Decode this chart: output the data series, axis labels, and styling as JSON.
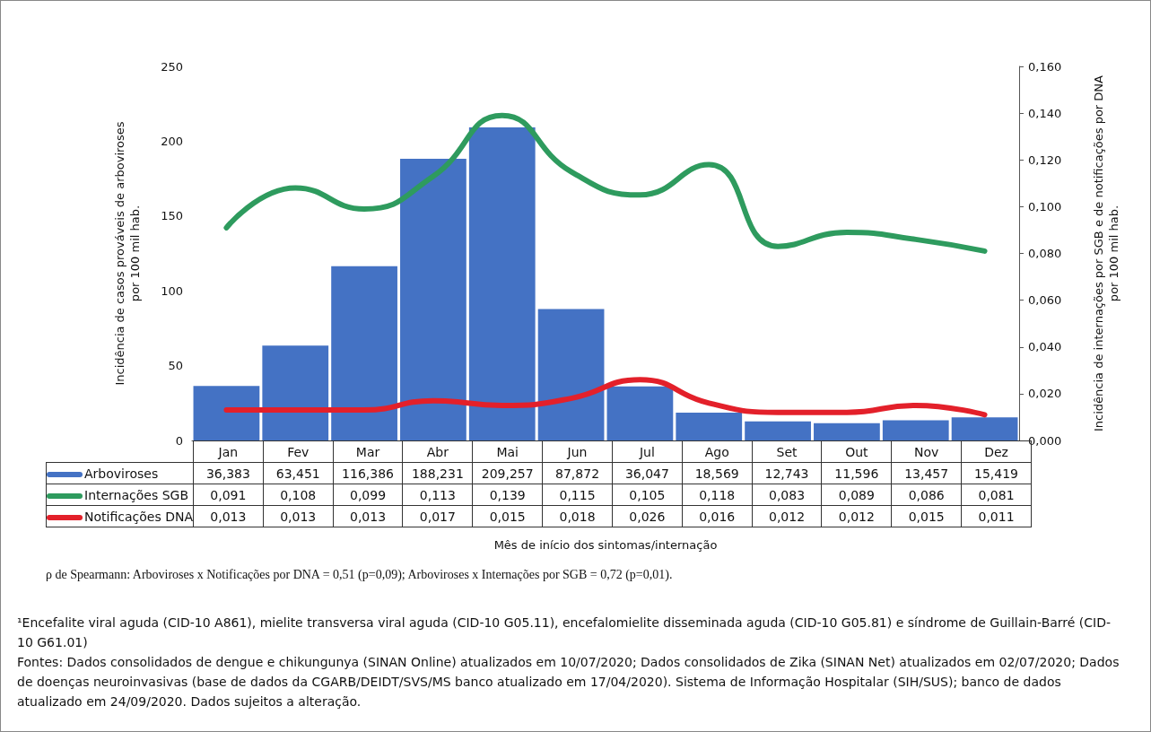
{
  "chart_data": {
    "type": "bar",
    "ylabel": "Incidência de casos prováveis de arboviroses\npor 100 mil hab.",
    "y2label": "Incidência de internações por SGB e de notificações por DNA\npor 100 mil hab.",
    "categories": [
      "Jan",
      "Fev",
      "Mar",
      "Abr",
      "Mai",
      "Jun",
      "Jul",
      "Ago",
      "Set",
      "Out",
      "Nov",
      "Dez"
    ],
    "series": [
      {
        "name": "Arboviroses",
        "color": "#4472c4",
        "values": [
          36.383,
          63.451,
          116.386,
          188.231,
          209.257,
          87.872,
          36.047,
          18.569,
          12.743,
          11.596,
          13.457,
          15.419
        ],
        "value_labels": [
          "36,383",
          "63,451",
          "116,386",
          "188,231",
          "209,257",
          "87,872",
          "36,047",
          "18,569",
          "12,743",
          "11,596",
          "13,457",
          "15,419"
        ]
      },
      {
        "name": "Internações SGB",
        "type": "line",
        "axis": "y2",
        "color": "#2e9b5e",
        "values": [
          0.091,
          0.108,
          0.099,
          0.113,
          0.139,
          0.115,
          0.105,
          0.118,
          0.083,
          0.089,
          0.086,
          0.081
        ],
        "value_labels": [
          "0,091",
          "0,108",
          "0,099",
          "0,113",
          "0,139",
          "0,115",
          "0,105",
          "0,118",
          "0,083",
          "0,089",
          "0,086",
          "0,081"
        ]
      },
      {
        "name": "Notificações DNA",
        "type": "line",
        "axis": "y2",
        "color": "#e3202a",
        "values": [
          0.013,
          0.013,
          0.013,
          0.017,
          0.015,
          0.018,
          0.026,
          0.016,
          0.012,
          0.012,
          0.015,
          0.011
        ],
        "value_labels": [
          "0,013",
          "0,013",
          "0,013",
          "0,017",
          "0,015",
          "0,018",
          "0,026",
          "0,016",
          "0,012",
          "0,012",
          "0,015",
          "0,011"
        ]
      }
    ],
    "ylim": [
      0,
      250
    ],
    "yticks": [
      0,
      50,
      100,
      150,
      200,
      250
    ],
    "y2lim": [
      0,
      0.16
    ],
    "y2ticks": [
      {
        "value": 0,
        "label": "0,000"
      },
      {
        "value": 0.02,
        "label": "0,020"
      },
      {
        "value": 0.04,
        "label": "0,040"
      },
      {
        "value": 0.06,
        "label": "0,060"
      },
      {
        "value": 0.08,
        "label": "0,080"
      },
      {
        "value": 0.1,
        "label": "0,100"
      },
      {
        "value": 0.12,
        "label": "0,120"
      },
      {
        "value": 0.14,
        "label": "0,140"
      },
      {
        "value": 0.16,
        "label": "0,160"
      }
    ],
    "grid": false,
    "legend": "bottom left",
    "marker": "none",
    "line_style": "solid",
    "annotations": [
      "Mês de início dos sintomas/internação",
      "ρ de Spearmann: Arboviroses x Notificações por DNA = 0,51 (p=0,09); Arboviroses x Internações por SGB = 0,72 (p=0,01).",
      "¹Encefalite viral aguda (CID-10 A861), mielite transversa viral aguda (CID-10 G05.11), encefalomielite disseminada aguda (CID-10 G05.81) e síndrome de Guillain-Barré (CID-10 G61.01)",
      "Fontes: Dados consolidados de dengue e chikungunya (SINAN Online) atualizados em 10/07/2020; Dados consolidados de Zika (SINAN Net) atualizados em 02/07/2020; Dados de doenças neuroinvasivas (base de dados da CGARB/DEIDT/SVS/MS banco atualizado em 17/04/2020). Sistema de Informação Hospitalar (SIH/SUS); banco de dados atualizado em 24/09/2020. Dados sujeitos a alteração."
    ]
  }
}
